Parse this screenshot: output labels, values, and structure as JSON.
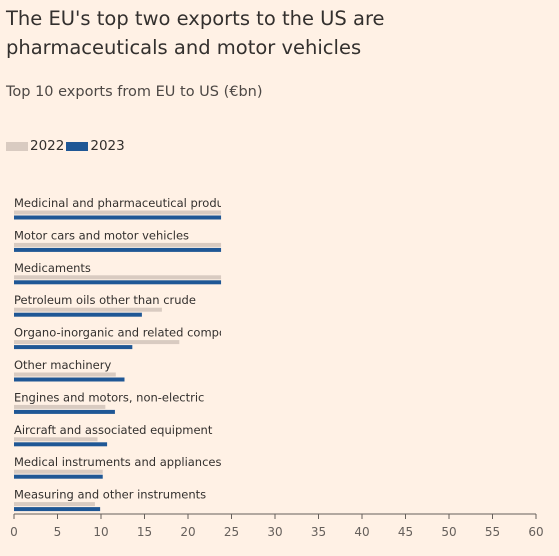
{
  "header": {
    "title": "The EU's top two exports to the US are pharmaceuticals and motor vehicles",
    "subtitle": "Top 10 exports from EU to US (€bn)"
  },
  "colors": {
    "c2022": "#d9cbc1",
    "c2023": "#1f5795",
    "axis": "#66605c",
    "grid": "#e6d9ce"
  },
  "chart_data": {
    "type": "bar",
    "orientation": "horizontal",
    "categories": [
      "Medicinal and pharmaceutical products",
      "Motor cars and motor vehicles",
      "Medicaments",
      "Petroleum oils other than crude",
      "Organo-inorganic and related compounds",
      "Other machinery",
      "Engines and motors, non-electric",
      "Aircraft and associated equipment",
      "Medical instruments and appliances",
      "Measuring and other instruments"
    ],
    "category_labels_visible": [
      "Medicinal and pharmaceutical produc",
      "Motor cars and motor vehicles",
      "Medicaments",
      "Petroleum oils other than crude",
      "Organo-inorganic and related compou",
      "Other machinery",
      "Engines and motors, non-electric",
      "Aircraft and associated equipment",
      "Medical instruments and appliances",
      "Measuring and other instruments"
    ],
    "series": [
      {
        "name": "2022",
        "values": [
          23.8,
          23.8,
          23.8,
          17,
          19,
          11.7,
          10.5,
          9.6,
          10.2,
          9.3
        ]
      },
      {
        "name": "2023",
        "values": [
          23.8,
          23.8,
          23.8,
          14.7,
          13.6,
          12.7,
          11.6,
          10.7,
          10.2,
          9.9
        ]
      }
    ],
    "xlim": [
      0,
      60
    ],
    "xticks": [
      0,
      5,
      10,
      15,
      20,
      25,
      30,
      35,
      40,
      45,
      50,
      55,
      60
    ],
    "legend_position": "top-left"
  }
}
